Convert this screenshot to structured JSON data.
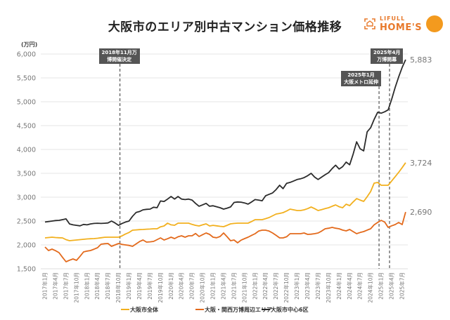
{
  "chart_data": {
    "type": "line",
    "title": "大阪市のエリア別中古マンション価格推移",
    "unit_label": "(万円)",
    "ylim": [
      1500,
      6000
    ],
    "y_ticks": [
      1500,
      2000,
      2500,
      3000,
      3500,
      4000,
      4500,
      5000,
      5500,
      6000
    ],
    "y_tick_labels": [
      "1,500",
      "2,000",
      "2,500",
      "3,000",
      "3,500",
      "4,000",
      "4,500",
      "5,000",
      "5,500",
      "6,000"
    ],
    "grid": true,
    "legend_position": "bottom",
    "x_tick_labels": [
      "2017年1月",
      "2017年4月",
      "2017年7月",
      "2017年10月",
      "2018年1月",
      "2018年4月",
      "2018年7月",
      "2018年10月",
      "2019年1月",
      "2019年4月",
      "2019年7月",
      "2019年10月",
      "2020年1月",
      "2020年4月",
      "2020年7月",
      "2020年10月",
      "2021年1月",
      "2021年4月",
      "2021年7月",
      "2021年10月",
      "2022年1月",
      "2022年4月",
      "2022年7月",
      "2022年10月",
      "2023年1月",
      "2023年4月",
      "2023年7月",
      "2023年10月",
      "2024年1月",
      "2024年4月",
      "2024年7月",
      "2024年10月",
      "2025年1月",
      "2025年4月",
      "2025年7月"
    ],
    "x": [
      "2017-01",
      "2017-02",
      "2017-03",
      "2017-04",
      "2017-05",
      "2017-06",
      "2017-07",
      "2017-08",
      "2017-09",
      "2017-10",
      "2017-11",
      "2017-12",
      "2018-01",
      "2018-02",
      "2018-03",
      "2018-04",
      "2018-05",
      "2018-06",
      "2018-07",
      "2018-08",
      "2018-09",
      "2018-10",
      "2018-11",
      "2018-12",
      "2019-01",
      "2019-02",
      "2019-03",
      "2019-04",
      "2019-05",
      "2019-06",
      "2019-07",
      "2019-08",
      "2019-09",
      "2019-10",
      "2019-11",
      "2019-12",
      "2020-01",
      "2020-02",
      "2020-03",
      "2020-04",
      "2020-05",
      "2020-06",
      "2020-07",
      "2020-08",
      "2020-09",
      "2020-10",
      "2020-11",
      "2020-12",
      "2021-01",
      "2021-02",
      "2021-03",
      "2021-04",
      "2021-05",
      "2021-06",
      "2021-07",
      "2021-08",
      "2021-09",
      "2021-10",
      "2021-11",
      "2021-12",
      "2022-01",
      "2022-02",
      "2022-03",
      "2022-04",
      "2022-05",
      "2022-06",
      "2022-07",
      "2022-08",
      "2022-09",
      "2022-10",
      "2022-11",
      "2022-12",
      "2023-01",
      "2023-02",
      "2023-03",
      "2023-04",
      "2023-05",
      "2023-06",
      "2023-07",
      "2023-08",
      "2023-09",
      "2023-10",
      "2023-11",
      "2023-12",
      "2024-01",
      "2024-02",
      "2024-03",
      "2024-04",
      "2024-05",
      "2024-06",
      "2024-07",
      "2024-08",
      "2024-09",
      "2024-10",
      "2024-11",
      "2024-12",
      "2025-01",
      "2025-02",
      "2025-03",
      "2025-04",
      "2025-05",
      "2025-06",
      "2025-07",
      "2025-08"
    ],
    "series": [
      {
        "name": "大阪市全体",
        "color": "#F2B01E",
        "end_label": "3,724",
        "values": [
          2147,
          2155,
          2162,
          2155,
          2150,
          2147,
          2110,
          2088,
          2095,
          2103,
          2110,
          2118,
          2125,
          2130,
          2132,
          2140,
          2150,
          2160,
          2162,
          2162,
          2162,
          2162,
          2190,
          2230,
          2260,
          2309,
          2315,
          2320,
          2324,
          2330,
          2333,
          2338,
          2338,
          2380,
          2397,
          2456,
          2420,
          2412,
          2456,
          2456,
          2456,
          2456,
          2430,
          2410,
          2397,
          2420,
          2441,
          2397,
          2410,
          2400,
          2390,
          2382,
          2410,
          2441,
          2450,
          2456,
          2456,
          2456,
          2456,
          2490,
          2529,
          2529,
          2529,
          2550,
          2574,
          2610,
          2647,
          2660,
          2676,
          2710,
          2750,
          2735,
          2721,
          2721,
          2735,
          2760,
          2794,
          2760,
          2721,
          2740,
          2760,
          2779,
          2810,
          2838,
          2800,
          2779,
          2853,
          2824,
          2900,
          2971,
          2940,
          2912,
          3010,
          3118,
          3294,
          3309,
          3250,
          3250,
          3250,
          3340,
          3430,
          3520,
          3620,
          3724
        ]
      },
      {
        "name": "大阪・関西万博周辺エリア",
        "color": "#E36A1C",
        "end_label": "2,690",
        "values": [
          1956,
          1882,
          1912,
          1880,
          1838,
          1740,
          1647,
          1680,
          1706,
          1676,
          1760,
          1853,
          1870,
          1882,
          1910,
          1941,
          2015,
          2025,
          2029,
          1970,
          2000,
          2029,
          2010,
          2000,
          1990,
          1970,
          2020,
          2070,
          2103,
          2059,
          2065,
          2074,
          2110,
          2147,
          2103,
          2130,
          2162,
          2132,
          2170,
          2191,
          2162,
          2191,
          2191,
          2240,
          2176,
          2215,
          2250,
          2221,
          2162,
          2150,
          2176,
          2250,
          2170,
          2088,
          2103,
          2044,
          2100,
          2132,
          2162,
          2200,
          2235,
          2290,
          2309,
          2309,
          2290,
          2250,
          2200,
          2147,
          2147,
          2170,
          2235,
          2235,
          2235,
          2235,
          2250,
          2221,
          2225,
          2235,
          2250,
          2290,
          2338,
          2350,
          2368,
          2350,
          2338,
          2310,
          2294,
          2324,
          2280,
          2235,
          2260,
          2279,
          2310,
          2338,
          2420,
          2471,
          2515,
          2480,
          2368,
          2400,
          2426,
          2471,
          2426,
          2690
        ]
      },
      {
        "name": "大阪市中心6区",
        "color": "#2B2B2B",
        "end_label": "5,883",
        "values": [
          2480,
          2490,
          2500,
          2510,
          2515,
          2530,
          2545,
          2440,
          2420,
          2410,
          2400,
          2430,
          2420,
          2440,
          2450,
          2455,
          2450,
          2455,
          2460,
          2500,
          2460,
          2410,
          2450,
          2480,
          2500,
          2600,
          2680,
          2700,
          2735,
          2745,
          2750,
          2790,
          2780,
          2920,
          2910,
          2960,
          3015,
          2960,
          3015,
          2960,
          2950,
          2960,
          2940,
          2870,
          2810,
          2840,
          2870,
          2810,
          2820,
          2800,
          2780,
          2750,
          2770,
          2795,
          2890,
          2900,
          2895,
          2880,
          2855,
          2900,
          2950,
          2940,
          2925,
          3030,
          3060,
          3090,
          3160,
          3250,
          3180,
          3290,
          3310,
          3340,
          3370,
          3385,
          3410,
          3450,
          3500,
          3420,
          3370,
          3420,
          3470,
          3515,
          3600,
          3670,
          3590,
          3640,
          3735,
          3680,
          3900,
          4160,
          4015,
          3970,
          4370,
          4455,
          4630,
          4780,
          4760,
          4790,
          4830,
          5050,
          5300,
          5520,
          5720,
          5883
        ]
      }
    ],
    "annotations": [
      {
        "x": "2018-11",
        "lines": [
          "2018年11月万",
          "博開催決定"
        ]
      },
      {
        "x": "2025-01",
        "lines": [
          "2025年1月",
          "大阪メトロ延伸"
        ]
      },
      {
        "x": "2025-04",
        "lines": [
          "2025年4月",
          "万博開幕"
        ]
      }
    ]
  },
  "logo": {
    "line1": "LIFULL",
    "line2": "HOME'S"
  }
}
